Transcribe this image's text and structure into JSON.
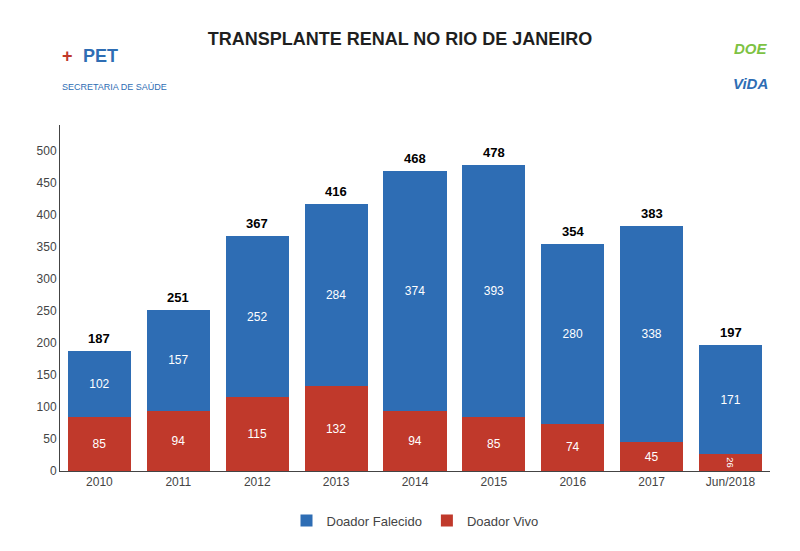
{
  "chart_data": {
    "type": "bar",
    "title": "TRANSPLANTE RENAL NO RIO DE JANEIRO",
    "categories": [
      "2010",
      "2011",
      "2012",
      "2013",
      "2014",
      "2015",
      "2016",
      "2017",
      "Jun/2018"
    ],
    "series": [
      {
        "name": "Doador Vivo",
        "color": "#C0392B",
        "values": [
          85,
          94,
          115,
          132,
          94,
          85,
          74,
          45,
          26
        ]
      },
      {
        "name": "Doador Falecido",
        "color": "#2E6DB4",
        "values": [
          102,
          157,
          252,
          284,
          374,
          393,
          280,
          338,
          171
        ]
      }
    ],
    "totals": [
      187,
      251,
      367,
      416,
      468,
      478,
      354,
      383,
      197
    ],
    "stacked": true,
    "data_labels": true,
    "grid": false,
    "legend": "bottom",
    "ylim": [
      0,
      540
    ],
    "yticks": [
      0,
      50,
      100,
      150,
      200,
      250,
      300,
      350,
      400,
      450,
      500
    ],
    "annotations": [
      "+",
      "PET",
      "SECRETARIA DE SAÚDE",
      "DOE",
      "ViDA"
    ]
  }
}
